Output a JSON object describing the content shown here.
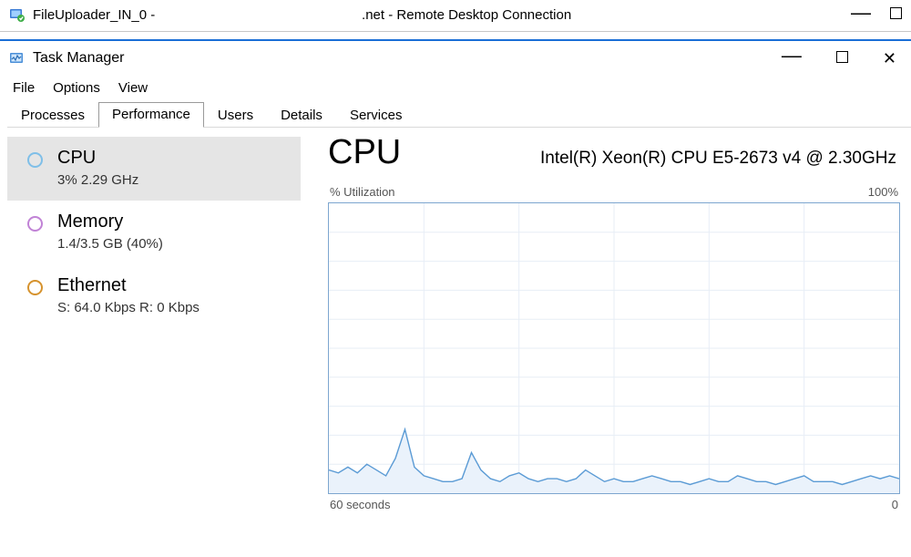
{
  "rdp": {
    "title_left": "FileUploader_IN_0 -",
    "title_center": ".net - Remote Desktop Connection"
  },
  "tm": {
    "title": "Task Manager",
    "menus": [
      "File",
      "Options",
      "View"
    ],
    "tabs": [
      "Processes",
      "Performance",
      "Users",
      "Details",
      "Services"
    ],
    "active_tab": 1
  },
  "sidebar": {
    "items": [
      {
        "label": "CPU",
        "sub": "3%  2.29 GHz",
        "ring_color": "#7fbfe8",
        "selected": true
      },
      {
        "label": "Memory",
        "sub": "1.4/3.5 GB (40%)",
        "ring_color": "#c183d6",
        "selected": false
      },
      {
        "label": "Ethernet",
        "sub": "S: 64.0 Kbps  R: 0 Kbps",
        "ring_color": "#d6932e",
        "selected": false
      }
    ]
  },
  "detail": {
    "title": "CPU",
    "subtitle": "Intel(R) Xeon(R) CPU E5-2673 v4 @ 2.30GHz",
    "chart": {
      "type": "area-line",
      "top_left_label": "% Utilization",
      "top_right_label": "100%",
      "bottom_left_label": "60 seconds",
      "bottom_right_label": "0",
      "xlim": [
        0,
        60
      ],
      "ylim": [
        0,
        100
      ],
      "grid_rows": 10,
      "grid_cols": 6,
      "line_color": "#5b9bd5",
      "fill_color": "#eaf2fb",
      "border_color": "#7da6cf",
      "grid_color": "#e7eef6",
      "background_color": "#ffffff",
      "line_width": 1.4,
      "values": [
        8,
        7,
        9,
        7,
        10,
        8,
        6,
        12,
        22,
        9,
        6,
        5,
        4,
        4,
        5,
        14,
        8,
        5,
        4,
        6,
        7,
        5,
        4,
        5,
        5,
        4,
        5,
        8,
        6,
        4,
        5,
        4,
        4,
        5,
        6,
        5,
        4,
        4,
        3,
        4,
        5,
        4,
        4,
        6,
        5,
        4,
        4,
        3,
        4,
        5,
        6,
        4,
        4,
        4,
        3,
        4,
        5,
        6,
        5,
        6,
        5
      ]
    }
  }
}
